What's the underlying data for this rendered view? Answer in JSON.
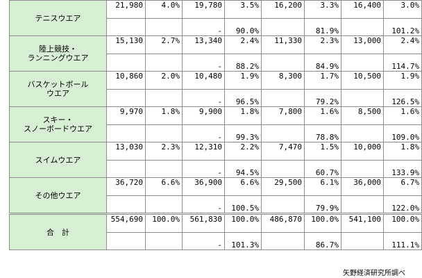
{
  "rows": [
    {
      "label_lines": [
        "テニスウエア"
      ],
      "top": [
        "21,980",
        "4.0%",
        "19,780",
        "3.5%",
        "16,200",
        "3.3%",
        "16,400",
        "3.0%"
      ],
      "bottom": [
        "",
        "",
        "-",
        "90.0%",
        "",
        "81.9%",
        "",
        "101.2%"
      ]
    },
    {
      "label_lines": [
        "陸上競技・",
        "ランニングウエア"
      ],
      "top": [
        "15,130",
        "2.7%",
        "13,340",
        "2.4%",
        "11,330",
        "2.3%",
        "13,000",
        "2.4%"
      ],
      "bottom": [
        "",
        "",
        "-",
        "88.2%",
        "",
        "84.9%",
        "",
        "114.7%"
      ]
    },
    {
      "label_lines": [
        "バスケットボール",
        "ウエア"
      ],
      "top": [
        "10,860",
        "2.0%",
        "10,480",
        "1.9%",
        "8,300",
        "1.7%",
        "10,500",
        "1.9%"
      ],
      "bottom": [
        "",
        "",
        "-",
        "96.5%",
        "",
        "79.2%",
        "",
        "126.5%"
      ]
    },
    {
      "label_lines": [
        "スキー・",
        "スノーボードウエア"
      ],
      "top": [
        "9,970",
        "1.8%",
        "9,900",
        "1.8%",
        "7,800",
        "1.6%",
        "8,500",
        "1.6%"
      ],
      "bottom": [
        "",
        "",
        "-",
        "99.3%",
        "",
        "78.8%",
        "",
        "109.0%"
      ]
    },
    {
      "label_lines": [
        "スイムウエア"
      ],
      "top": [
        "13,030",
        "2.3%",
        "12,310",
        "2.2%",
        "7,470",
        "1.5%",
        "10,000",
        "1.8%"
      ],
      "bottom": [
        "",
        "",
        "-",
        "94.5%",
        "",
        "60.7%",
        "",
        "133.9%"
      ]
    },
    {
      "label_lines": [
        "その他ウエア"
      ],
      "top": [
        "36,720",
        "6.6%",
        "36,900",
        "6.6%",
        "29,500",
        "6.1%",
        "36,000",
        "6.7%"
      ],
      "bottom": [
        "",
        "",
        "-",
        "100.5%",
        "",
        "79.9%",
        "",
        "122.0%"
      ]
    }
  ],
  "total": {
    "label_lines": [
      "合　計"
    ],
    "top": [
      "554,690",
      "100.0%",
      "561,830",
      "100.0%",
      "486,870",
      "100.0%",
      "541,100",
      "100.0%"
    ],
    "bottom": [
      "",
      "",
      "-",
      "101.3%",
      "",
      "86.7%",
      "",
      "111.1%"
    ]
  },
  "source_note": "矢野経済研究所調べ"
}
